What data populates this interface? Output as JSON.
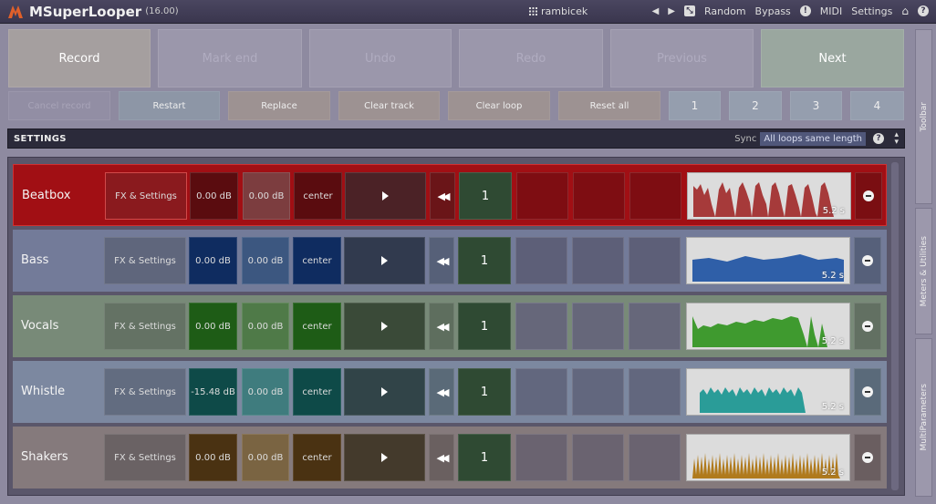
{
  "titlebar": {
    "title": "MSuperLooper",
    "version": "(16.00)",
    "preset": "rambicek",
    "random": "Random",
    "bypass": "Bypass",
    "midi": "MIDI",
    "settings": "Settings"
  },
  "main_buttons": {
    "record": "Record",
    "mark_end": "Mark end",
    "undo": "Undo",
    "redo": "Redo",
    "previous": "Previous",
    "next": "Next"
  },
  "secondary_buttons": {
    "cancel_record": "Cancel record",
    "restart": "Restart",
    "replace": "Replace",
    "clear_track": "Clear track",
    "clear_loop": "Clear loop",
    "reset_all": "Reset all",
    "loops": [
      "1",
      "2",
      "3",
      "4"
    ]
  },
  "settings_bar": {
    "label": "SETTINGS",
    "sync_label": "Sync",
    "sync_value": "All loops same length"
  },
  "tracks": [
    {
      "name": "Beatbox",
      "fx": "FX & Settings",
      "vol1": "0.00 dB",
      "vol2": "0.00 dB",
      "pan": "center",
      "loop": "1",
      "duration": "5.2 s",
      "color": "#a61c1c"
    },
    {
      "name": "Bass",
      "fx": "FX & Settings",
      "vol1": "0.00 dB",
      "vol2": "0.00 dB",
      "pan": "center",
      "loop": "1",
      "duration": "5.2 s",
      "color": "#2f5fa8"
    },
    {
      "name": "Vocals",
      "fx": "FX & Settings",
      "vol1": "0.00 dB",
      "vol2": "0.00 dB",
      "pan": "center",
      "loop": "1",
      "duration": "5.2 s",
      "color": "#3f9a2f"
    },
    {
      "name": "Whistle",
      "fx": "FX & Settings",
      "vol1": "-15.48 dB",
      "vol2": "0.00 dB",
      "pan": "center",
      "loop": "1",
      "duration": "5.2 s",
      "color": "#2a9c98"
    },
    {
      "name": "Shakers",
      "fx": "FX & Settings",
      "vol1": "0.00 dB",
      "vol2": "0.00 dB",
      "pan": "center",
      "loop": "1",
      "duration": "5.2 s",
      "color": "#b07a1c"
    }
  ],
  "side_tabs": {
    "toolbar": "Toolbar",
    "meters": "Meters & Utilities",
    "multiparams": "MultiParameters"
  }
}
